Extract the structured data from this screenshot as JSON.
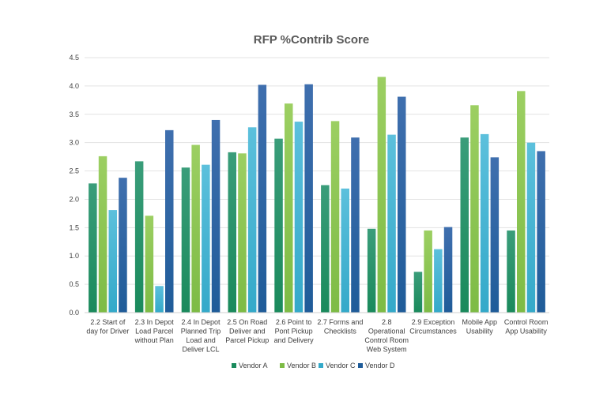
{
  "chart_data": {
    "type": "bar",
    "title": "RFP %Contrib Score",
    "xlabel": "",
    "ylabel": "",
    "ylim": [
      0,
      4.5
    ],
    "yticks": [
      "0.0",
      "0.5",
      "1.0",
      "1.5",
      "2.0",
      "2.5",
      "3.0",
      "3.5",
      "4.0",
      "4.5"
    ],
    "grid": true,
    "legend_position": "bottom",
    "categories": [
      [
        "2.2 Start of",
        "day for Driver"
      ],
      [
        "2.3 In Depot",
        "Load Parcel",
        "without Plan"
      ],
      [
        "2.4 In Depot",
        "Planned Trip",
        "Load and",
        "Deliver LCL"
      ],
      [
        "2.5 On Road",
        "Deliver and",
        "Parcel Pickup"
      ],
      [
        "2.6 Point to",
        "Pont Pickup",
        "and Delivery"
      ],
      [
        "2.7 Forms and",
        "Checklists"
      ],
      [
        "2.8",
        "Operational",
        "Control Room",
        "Web System"
      ],
      [
        "2.9 Exception",
        "Circumstances"
      ],
      [
        "Mobile App",
        "Usability"
      ],
      [
        "Control Room",
        "App Usability"
      ]
    ],
    "series": [
      {
        "name": "Vendor A",
        "color_top": "#3a9d7a",
        "color_bottom": "#1a8a5c",
        "values": [
          2.28,
          2.67,
          2.56,
          2.83,
          3.07,
          2.25,
          1.48,
          0.72,
          3.09,
          1.45
        ]
      },
      {
        "name": "Vendor B",
        "color_top": "#9ccf62",
        "color_bottom": "#7dbb45",
        "values": [
          2.76,
          1.71,
          2.96,
          2.81,
          3.69,
          3.38,
          4.16,
          1.45,
          3.66,
          3.91
        ]
      },
      {
        "name": "Vendor C",
        "color_top": "#5cc0dc",
        "color_bottom": "#34a9c9",
        "values": [
          1.81,
          0.47,
          2.61,
          3.27,
          3.37,
          2.19,
          3.14,
          1.12,
          3.15,
          3.0
        ]
      },
      {
        "name": "Vendor D",
        "color_top": "#3f6fae",
        "color_bottom": "#1f5c99",
        "values": [
          2.38,
          3.22,
          3.4,
          4.02,
          4.03,
          3.09,
          3.81,
          1.51,
          2.74,
          2.85
        ]
      }
    ]
  }
}
